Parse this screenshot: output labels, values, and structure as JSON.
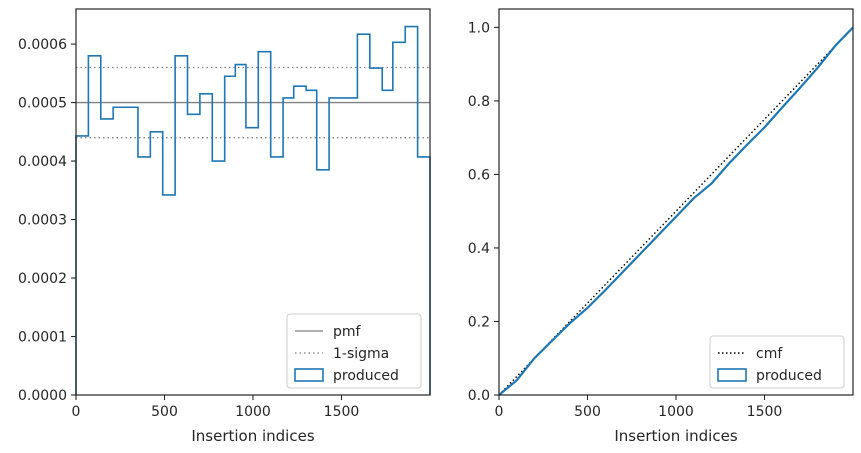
{
  "chart_data": [
    {
      "type": "line",
      "subtype": "step-histogram",
      "xlabel": "Insertion indices",
      "ylabel": "",
      "xlim": [
        0,
        2000
      ],
      "ylim": [
        0,
        0.00066
      ],
      "xticks": [
        0,
        500,
        1000,
        1500
      ],
      "yticks": [
        0,
        0.0001,
        0.0002,
        0.0003,
        0.0004,
        0.0005,
        0.0006
      ],
      "ytick_labels": [
        "0.0000",
        "0.0001",
        "0.0002",
        "0.0003",
        "0.0004",
        "0.0005",
        "0.0006"
      ],
      "legend_position": "lower right",
      "grid": false,
      "reference_lines": [
        {
          "name": "pmf",
          "y": 0.0005,
          "style": "solid",
          "color": "#808080"
        },
        {
          "name": "1-sigma",
          "y": 0.00056,
          "style": "dotted",
          "color": "#808080"
        },
        {
          "name": "1-sigma-lower",
          "y": 0.00044,
          "style": "dotted",
          "color": "#808080"
        }
      ],
      "series": [
        {
          "name": "produced",
          "color": "#1f77b4",
          "bin_edges": [
            0,
            70,
            140,
            210,
            350,
            420,
            490,
            560,
            630,
            700,
            770,
            840,
            900,
            960,
            1030,
            1100,
            1170,
            1230,
            1300,
            1360,
            1430,
            1500,
            1590,
            1660,
            1730,
            1790,
            1860,
            1930,
            2000
          ],
          "values": [
            0.000443,
            0.00058,
            0.000472,
            0.000492,
            0.000407,
            0.00045,
            0.000342,
            0.00058,
            0.00048,
            0.000515,
            0.0004,
            0.000545,
            0.000565,
            0.000457,
            0.000587,
            0.000407,
            0.000508,
            0.000528,
            0.000521,
            0.000385,
            0.000508,
            0.000508,
            0.000617,
            0.000559,
            0.000521,
            0.000603,
            0.00063,
            0.000407
          ]
        }
      ],
      "legend": [
        "pmf",
        "1-sigma",
        "produced"
      ]
    },
    {
      "type": "line",
      "xlabel": "Insertion indices",
      "ylabel": "",
      "xlim": [
        0,
        2000
      ],
      "ylim": [
        0,
        1.05
      ],
      "xticks": [
        0,
        500,
        1000,
        1500
      ],
      "yticks": [
        0,
        0.2,
        0.4,
        0.6,
        0.8,
        1.0
      ],
      "ytick_labels": [
        "0.0",
        "0.2",
        "0.4",
        "0.6",
        "0.8",
        "1.0"
      ],
      "legend_position": "lower right",
      "grid": false,
      "series": [
        {
          "name": "cmf",
          "style": "dotted",
          "color": "#000000",
          "x": [
            0,
            2000
          ],
          "y": [
            0,
            1.0
          ]
        },
        {
          "name": "produced",
          "style": "solid",
          "color": "#1f77b4",
          "x": [
            0,
            100,
            200,
            300,
            400,
            500,
            600,
            700,
            800,
            900,
            1000,
            1100,
            1200,
            1300,
            1400,
            1500,
            1600,
            1700,
            1800,
            1900,
            2000
          ],
          "y": [
            0,
            0.04,
            0.1,
            0.148,
            0.195,
            0.237,
            0.285,
            0.335,
            0.385,
            0.435,
            0.485,
            0.535,
            0.575,
            0.63,
            0.68,
            0.728,
            0.782,
            0.835,
            0.89,
            0.95,
            1.0
          ]
        }
      ],
      "legend": [
        "cmf",
        "produced"
      ]
    }
  ]
}
